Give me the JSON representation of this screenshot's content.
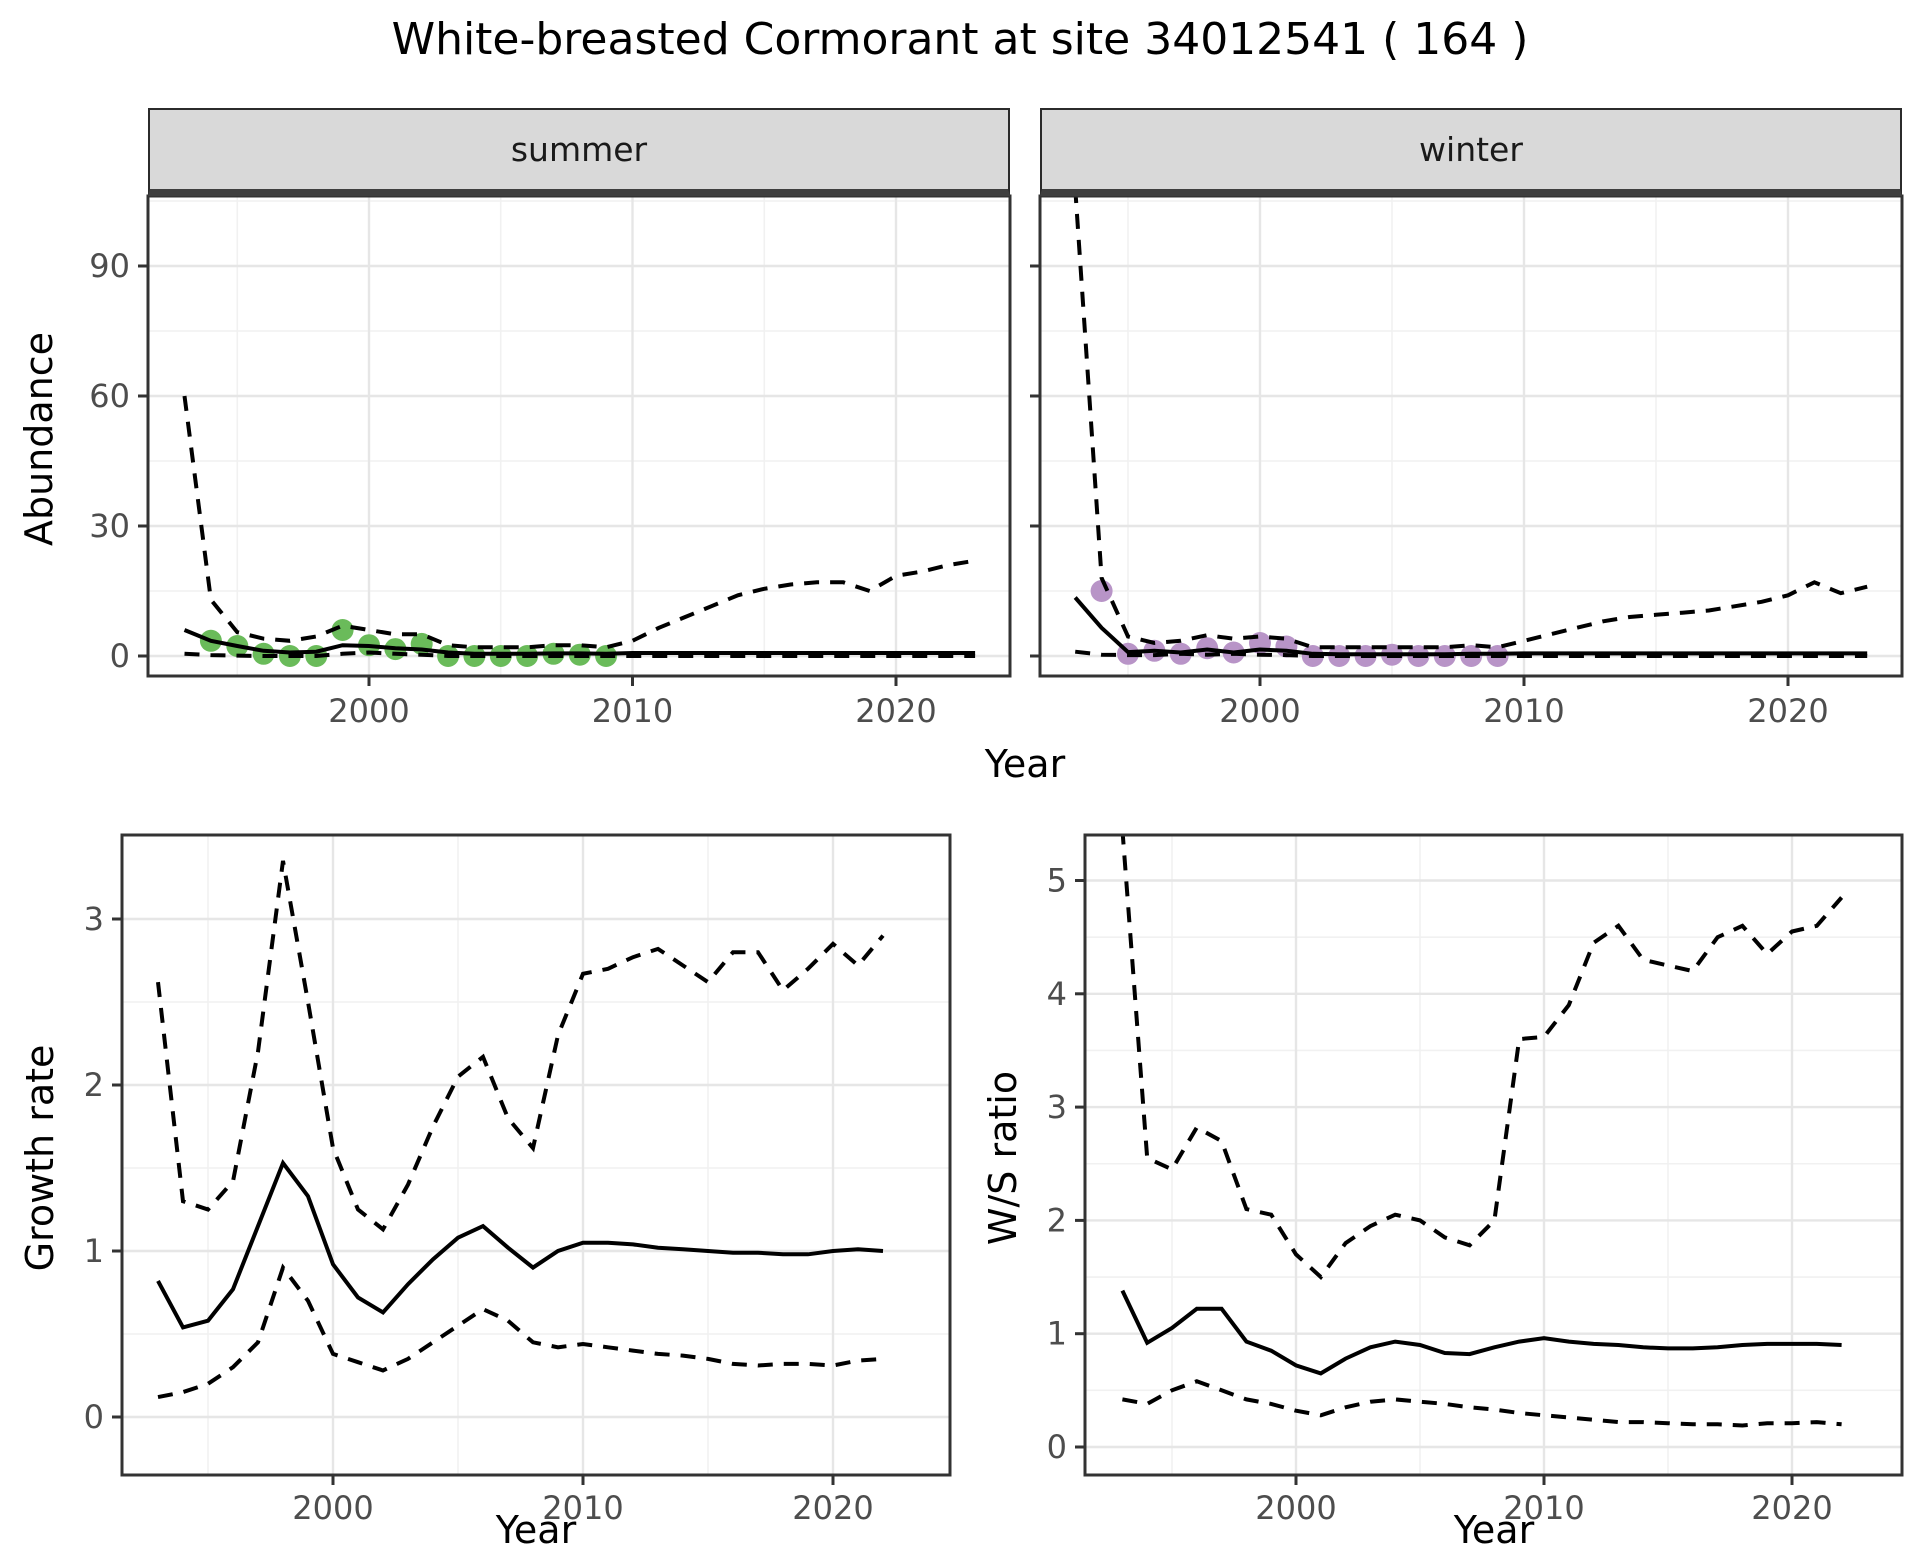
{
  "title": "White-breasted Cormorant at site 34012541 ( 164 )",
  "facets": [
    {
      "label": "summer"
    },
    {
      "label": "winter"
    }
  ],
  "axis_titles": {
    "x_top": "Year",
    "x_bottom_left": "Year",
    "x_bottom_right": "Year",
    "y_top": "Abundance",
    "y_bottom_left": "Growth rate",
    "y_bottom_right": "W/S ratio"
  },
  "colors": {
    "summer_point": "#6ABB5A",
    "winter_point": "#B894C7",
    "line": "#000000",
    "grid_major": "#E6E6E6",
    "grid_minor": "#F1F1F1",
    "strip_bg": "#D9D9D9",
    "panel_border": "#333333",
    "tick_text": "#4D4D4D"
  },
  "chart_data": [
    {
      "type": "line",
      "name": "abundance-summer",
      "facet": "summer",
      "xlabel": "Year",
      "ylabel": "Abundance",
      "xlim": [
        1991.6,
        2024.3
      ],
      "ylim": [
        -4.6,
        106.2
      ],
      "grid": true,
      "legend": "none",
      "x_ticks": [
        {
          "v": 2000,
          "label": "2000"
        },
        {
          "v": 2010,
          "label": "2010"
        },
        {
          "v": 2020,
          "label": "2020"
        }
      ],
      "y_ticks": [
        {
          "v": 0,
          "label": "0"
        },
        {
          "v": 30,
          "label": "30"
        },
        {
          "v": 60,
          "label": "60"
        },
        {
          "v": 90,
          "label": "90"
        }
      ],
      "x_minor": [
        1995,
        2005,
        2015
      ],
      "y_minor": [
        15,
        45,
        75,
        105
      ],
      "x": [
        1993,
        1994,
        1995,
        1996,
        1997,
        1998,
        1999,
        2000,
        2001,
        2002,
        2003,
        2004,
        2005,
        2006,
        2007,
        2008,
        2009,
        2010,
        2011,
        2012,
        2013,
        2014,
        2015,
        2016,
        2017,
        2018,
        2019,
        2020,
        2021,
        2022,
        2023
      ],
      "series": [
        {
          "name": "median",
          "style": "solid",
          "values": [
            6,
            3.5,
            2.3,
            1.2,
            0.8,
            1.0,
            2.5,
            2.3,
            1.8,
            1.5,
            0.8,
            0.5,
            0.5,
            0.5,
            0.6,
            0.6,
            0.5,
            0.7,
            0.7,
            0.7,
            0.7,
            0.7,
            0.7,
            0.7,
            0.7,
            0.7,
            0.7,
            0.7,
            0.7,
            0.7,
            0.7
          ]
        },
        {
          "name": "upper_95ci",
          "style": "dashed",
          "values": [
            60,
            13,
            5.5,
            4,
            3.5,
            4.5,
            7,
            6,
            5,
            5,
            2.5,
            2,
            2,
            2,
            2.5,
            2.5,
            2,
            3.5,
            6.5,
            9,
            11.5,
            14,
            15.5,
            16.5,
            17,
            17,
            15,
            18.5,
            19.5,
            21,
            22
          ]
        },
        {
          "name": "lower_95ci",
          "style": "dashed",
          "values": [
            0.5,
            0.2,
            0.1,
            0,
            0,
            0,
            0.5,
            0.8,
            0.5,
            0.3,
            0,
            0,
            0,
            0,
            0,
            0,
            0,
            0,
            0,
            0,
            0,
            0,
            0,
            0,
            0,
            0,
            0,
            0,
            0,
            0,
            0
          ]
        }
      ],
      "observed_points": {
        "color_key": "summer_point",
        "x": [
          1994,
          1995,
          1996,
          1997,
          1998,
          1999,
          2000,
          2001,
          2002,
          2003,
          2004,
          2005,
          2006,
          2007,
          2008,
          2009
        ],
        "y": [
          3.5,
          2.3,
          0.5,
          0,
          0,
          6,
          2.5,
          1.6,
          2.8,
          0,
          0,
          0,
          0,
          0.5,
          0.3,
          0
        ]
      }
    },
    {
      "type": "line",
      "name": "abundance-winter",
      "facet": "winter",
      "xlabel": "Year",
      "ylabel": "Abundance",
      "xlim": [
        1991.6,
        2024.3
      ],
      "ylim": [
        -4.6,
        106.2
      ],
      "grid": true,
      "legend": "none",
      "x_ticks": [
        {
          "v": 2000,
          "label": "2000"
        },
        {
          "v": 2010,
          "label": "2010"
        },
        {
          "v": 2020,
          "label": "2020"
        }
      ],
      "y_ticks": [
        {
          "v": 0,
          "label": "0"
        },
        {
          "v": 30,
          "label": "30"
        },
        {
          "v": 60,
          "label": "60"
        },
        {
          "v": 90,
          "label": "90"
        }
      ],
      "x_minor": [
        1995,
        2005,
        2015
      ],
      "y_minor": [
        15,
        45,
        75,
        105
      ],
      "x": [
        1993,
        1994,
        1995,
        1996,
        1997,
        1998,
        1999,
        2000,
        2001,
        2002,
        2003,
        2004,
        2005,
        2006,
        2007,
        2008,
        2009,
        2010,
        2011,
        2012,
        2013,
        2014,
        2015,
        2016,
        2017,
        2018,
        2019,
        2020,
        2021,
        2022,
        2023
      ],
      "series": [
        {
          "name": "median",
          "style": "solid",
          "values": [
            13.5,
            6.5,
            0.9,
            1.2,
            0.8,
            1.5,
            0.8,
            1.5,
            1.2,
            0.5,
            0.4,
            0.4,
            0.4,
            0.4,
            0.4,
            0.5,
            0.5,
            0.6,
            0.6,
            0.6,
            0.6,
            0.6,
            0.6,
            0.6,
            0.6,
            0.6,
            0.6,
            0.6,
            0.6,
            0.6,
            0.6
          ]
        },
        {
          "name": "upper_95ci",
          "style": "dashed",
          "values": [
            108,
            18,
            4.5,
            3,
            3.5,
            4.8,
            4,
            4.5,
            4,
            2,
            2,
            2,
            2,
            2,
            2,
            2.5,
            2,
            3.5,
            5,
            6.5,
            8,
            9,
            9.5,
            10,
            10.5,
            11.5,
            12.5,
            14,
            17,
            14.5,
            16
          ]
        },
        {
          "name": "lower_95ci",
          "style": "dashed",
          "values": [
            1,
            0.3,
            0.2,
            0.2,
            0.5,
            0.3,
            0.5,
            0.3,
            0.2,
            0,
            0,
            0,
            0,
            0,
            0,
            0,
            0,
            0,
            0,
            0,
            0,
            0,
            0,
            0,
            0,
            0,
            0,
            0,
            0,
            0,
            0
          ]
        }
      ],
      "observed_points": {
        "color_key": "winter_point",
        "x": [
          1994,
          1995,
          1996,
          1997,
          1998,
          1999,
          2000,
          2001,
          2002,
          2003,
          2004,
          2005,
          2006,
          2007,
          2008,
          2009
        ],
        "y": [
          15,
          0.5,
          1.2,
          0.5,
          1.8,
          0.8,
          3,
          2.2,
          0,
          0,
          0,
          0.3,
          0,
          0,
          0,
          0
        ]
      }
    },
    {
      "type": "line",
      "name": "growth-rate",
      "xlabel": "Year",
      "ylabel": "Growth rate",
      "xlim": [
        1991.56,
        2024.68
      ],
      "ylim": [
        -0.35,
        3.51
      ],
      "grid": true,
      "legend": "none",
      "x_ticks": [
        {
          "v": 2000,
          "label": "2000"
        },
        {
          "v": 2010,
          "label": "2010"
        },
        {
          "v": 2020,
          "label": "2020"
        }
      ],
      "y_ticks": [
        {
          "v": 0,
          "label": "0"
        },
        {
          "v": 1,
          "label": "1"
        },
        {
          "v": 2,
          "label": "2"
        },
        {
          "v": 3,
          "label": "3"
        }
      ],
      "x_minor": [
        1995,
        2005,
        2015
      ],
      "y_minor": [
        0.5,
        1.5,
        2.5,
        3.5
      ],
      "x": [
        1993,
        1994,
        1995,
        1996,
        1997,
        1998,
        1999,
        2000,
        2001,
        2002,
        2003,
        2004,
        2005,
        2006,
        2007,
        2008,
        2009,
        2010,
        2011,
        2012,
        2013,
        2014,
        2015,
        2016,
        2017,
        2018,
        2019,
        2020,
        2021,
        2022
      ],
      "series": [
        {
          "name": "median",
          "style": "solid",
          "values": [
            0.82,
            0.54,
            0.58,
            0.77,
            1.15,
            1.53,
            1.33,
            0.92,
            0.72,
            0.63,
            0.8,
            0.95,
            1.08,
            1.15,
            1.02,
            0.9,
            1.0,
            1.05,
            1.05,
            1.04,
            1.02,
            1.01,
            1.0,
            0.99,
            0.99,
            0.98,
            0.98,
            1.0,
            1.01,
            1.0
          ]
        },
        {
          "name": "upper_95ci",
          "style": "dashed",
          "values": [
            2.62,
            1.3,
            1.25,
            1.42,
            2.2,
            3.35,
            2.5,
            1.62,
            1.25,
            1.13,
            1.4,
            1.75,
            2.05,
            2.17,
            1.8,
            1.62,
            2.3,
            2.67,
            2.7,
            2.77,
            2.82,
            2.72,
            2.62,
            2.8,
            2.8,
            2.57,
            2.7,
            2.85,
            2.72,
            2.9
          ]
        },
        {
          "name": "lower_95ci",
          "style": "dashed",
          "values": [
            0.12,
            0.15,
            0.2,
            0.3,
            0.45,
            0.9,
            0.7,
            0.38,
            0.33,
            0.28,
            0.35,
            0.45,
            0.55,
            0.65,
            0.58,
            0.45,
            0.42,
            0.44,
            0.42,
            0.4,
            0.38,
            0.37,
            0.35,
            0.32,
            0.31,
            0.32,
            0.32,
            0.31,
            0.34,
            0.35
          ]
        }
      ]
    },
    {
      "type": "line",
      "name": "ws-ratio",
      "xlabel": "Year",
      "ylabel": "W/S ratio",
      "xlim": [
        1991.49,
        2024.44
      ],
      "ylim": [
        -0.25,
        5.4
      ],
      "grid": true,
      "legend": "none",
      "x_ticks": [
        {
          "v": 2000,
          "label": "2000"
        },
        {
          "v": 2010,
          "label": "2010"
        },
        {
          "v": 2020,
          "label": "2020"
        }
      ],
      "y_ticks": [
        {
          "v": 0,
          "label": "0"
        },
        {
          "v": 1,
          "label": "1"
        },
        {
          "v": 2,
          "label": "2"
        },
        {
          "v": 3,
          "label": "3"
        },
        {
          "v": 4,
          "label": "4"
        },
        {
          "v": 5,
          "label": "5"
        }
      ],
      "x_minor": [
        1995,
        2005,
        2015
      ],
      "y_minor": [
        0.5,
        1.5,
        2.5,
        3.5,
        4.5
      ],
      "x": [
        1993,
        1994,
        1995,
        1996,
        1997,
        1998,
        1999,
        2000,
        2001,
        2002,
        2003,
        2004,
        2005,
        2006,
        2007,
        2008,
        2009,
        2010,
        2011,
        2012,
        2013,
        2014,
        2015,
        2016,
        2017,
        2018,
        2019,
        2020,
        2021,
        2022
      ],
      "series": [
        {
          "name": "median",
          "style": "solid",
          "values": [
            1.38,
            0.92,
            1.05,
            1.22,
            1.22,
            0.93,
            0.85,
            0.72,
            0.65,
            0.78,
            0.88,
            0.93,
            0.9,
            0.83,
            0.82,
            0.88,
            0.93,
            0.96,
            0.93,
            0.91,
            0.9,
            0.88,
            0.87,
            0.87,
            0.88,
            0.9,
            0.91,
            0.91,
            0.91,
            0.9
          ]
        },
        {
          "name": "upper_95ci",
          "style": "dashed",
          "values": [
            5.45,
            2.55,
            2.45,
            2.82,
            2.7,
            2.1,
            2.05,
            1.7,
            1.5,
            1.8,
            1.95,
            2.05,
            2.0,
            1.85,
            1.78,
            2.0,
            3.6,
            3.62,
            3.9,
            4.45,
            4.6,
            4.3,
            4.25,
            4.2,
            4.5,
            4.6,
            4.35,
            4.55,
            4.6,
            4.85
          ]
        },
        {
          "name": "lower_95ci",
          "style": "dashed",
          "values": [
            0.42,
            0.38,
            0.5,
            0.58,
            0.5,
            0.42,
            0.38,
            0.32,
            0.28,
            0.35,
            0.4,
            0.42,
            0.4,
            0.38,
            0.35,
            0.33,
            0.3,
            0.28,
            0.26,
            0.24,
            0.22,
            0.22,
            0.21,
            0.2,
            0.2,
            0.19,
            0.21,
            0.21,
            0.22,
            0.2
          ]
        }
      ]
    }
  ]
}
